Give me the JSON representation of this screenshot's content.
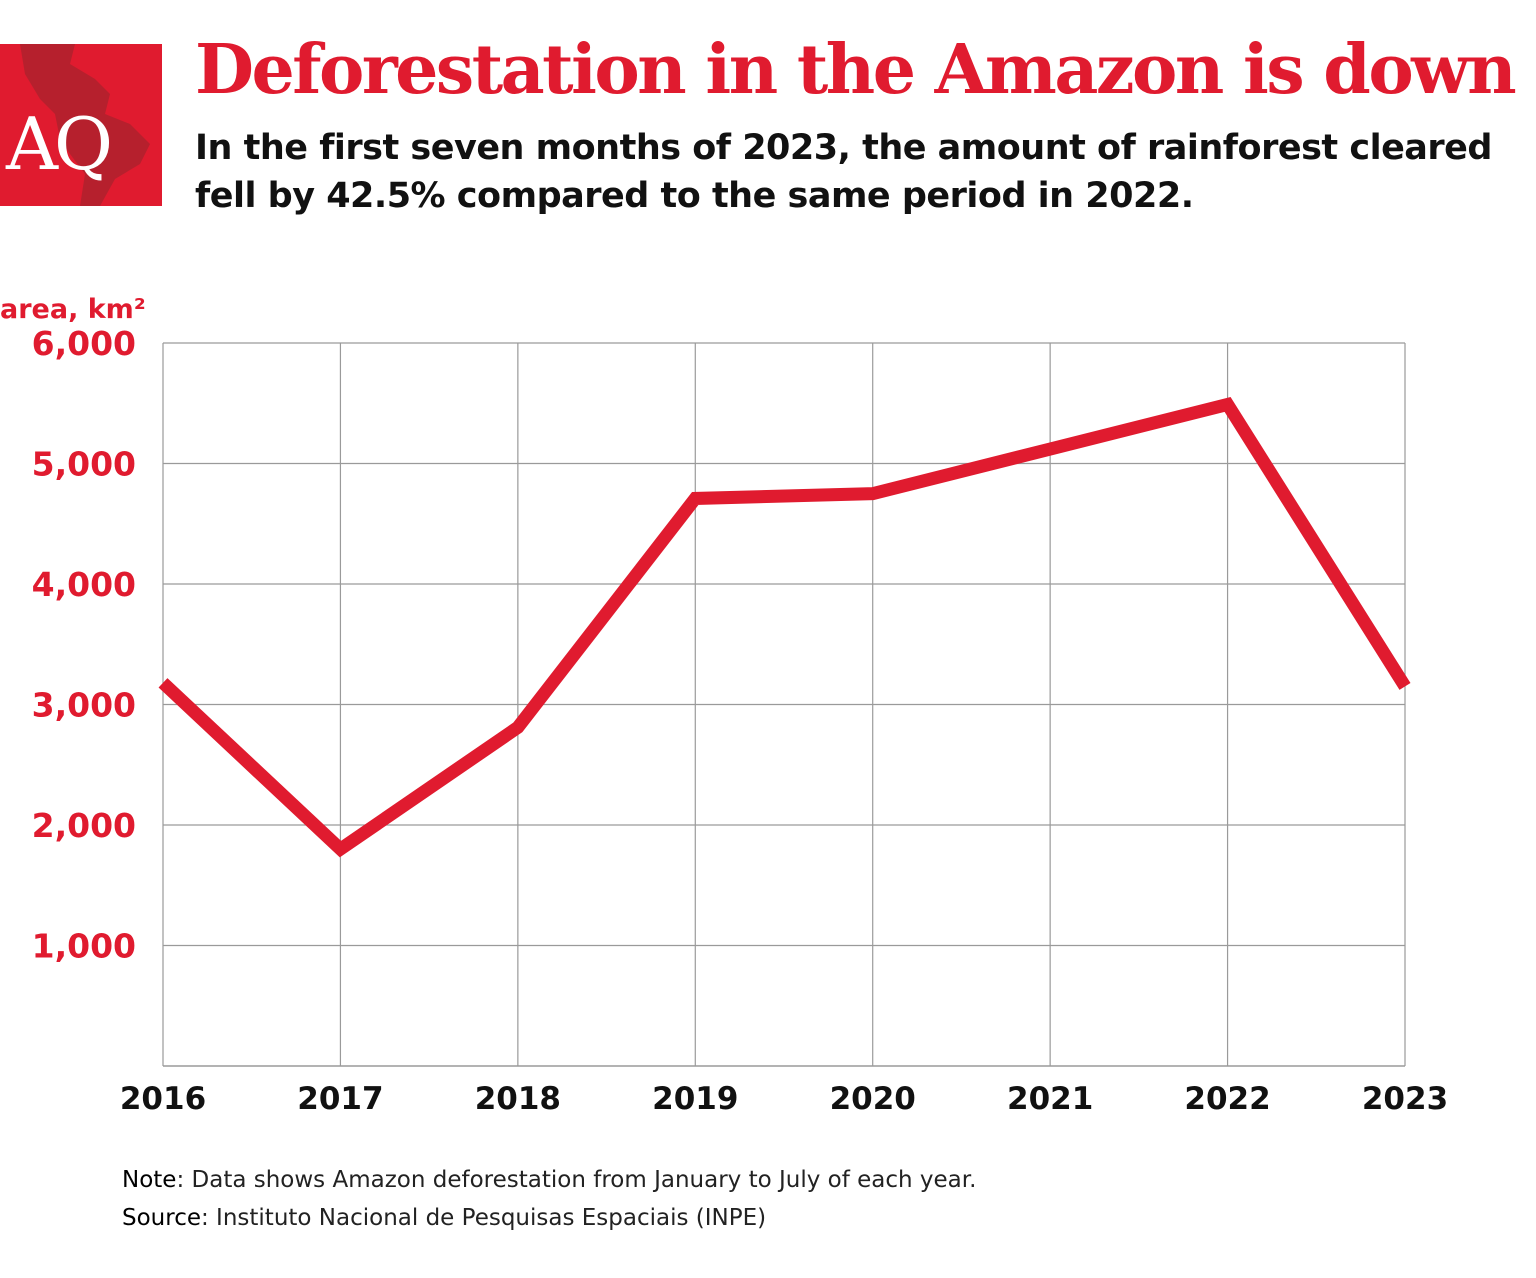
{
  "header": {
    "logo": "AQ",
    "title": "Deforestation in the Amazon is down",
    "subtitle": "In the first seven months of 2023, the amount of rainforest cleared fell by 42.5% compared to the same period in 2022."
  },
  "footer": {
    "note_label": "Note",
    "note_text": ": Data shows Amazon deforestation from January to July of each year.",
    "source_label": "Source",
    "source_text": ": Instituto Nacional de Pesquisas Espaciais (INPE)"
  },
  "colors": {
    "accent": "#e01b2f",
    "grid": "#9a9a9a",
    "text": "#111111"
  },
  "chart_data": {
    "type": "line",
    "title": "Deforestation in the Amazon is down",
    "xlabel": "",
    "ylabel": "area, km²",
    "categories": [
      "2016",
      "2017",
      "2018",
      "2019",
      "2020",
      "2021",
      "2022",
      "2023"
    ],
    "values": [
      3180,
      1800,
      2810,
      4710,
      4750,
      5120,
      5490,
      3150
    ],
    "ylim": [
      0,
      6000
    ],
    "yticks": [
      1000,
      2000,
      3000,
      4000,
      5000,
      6000
    ],
    "ytick_labels": [
      "1,000",
      "2,000",
      "3,000",
      "4,000",
      "5,000",
      "6,000"
    ],
    "grid": true,
    "legend": "none"
  }
}
